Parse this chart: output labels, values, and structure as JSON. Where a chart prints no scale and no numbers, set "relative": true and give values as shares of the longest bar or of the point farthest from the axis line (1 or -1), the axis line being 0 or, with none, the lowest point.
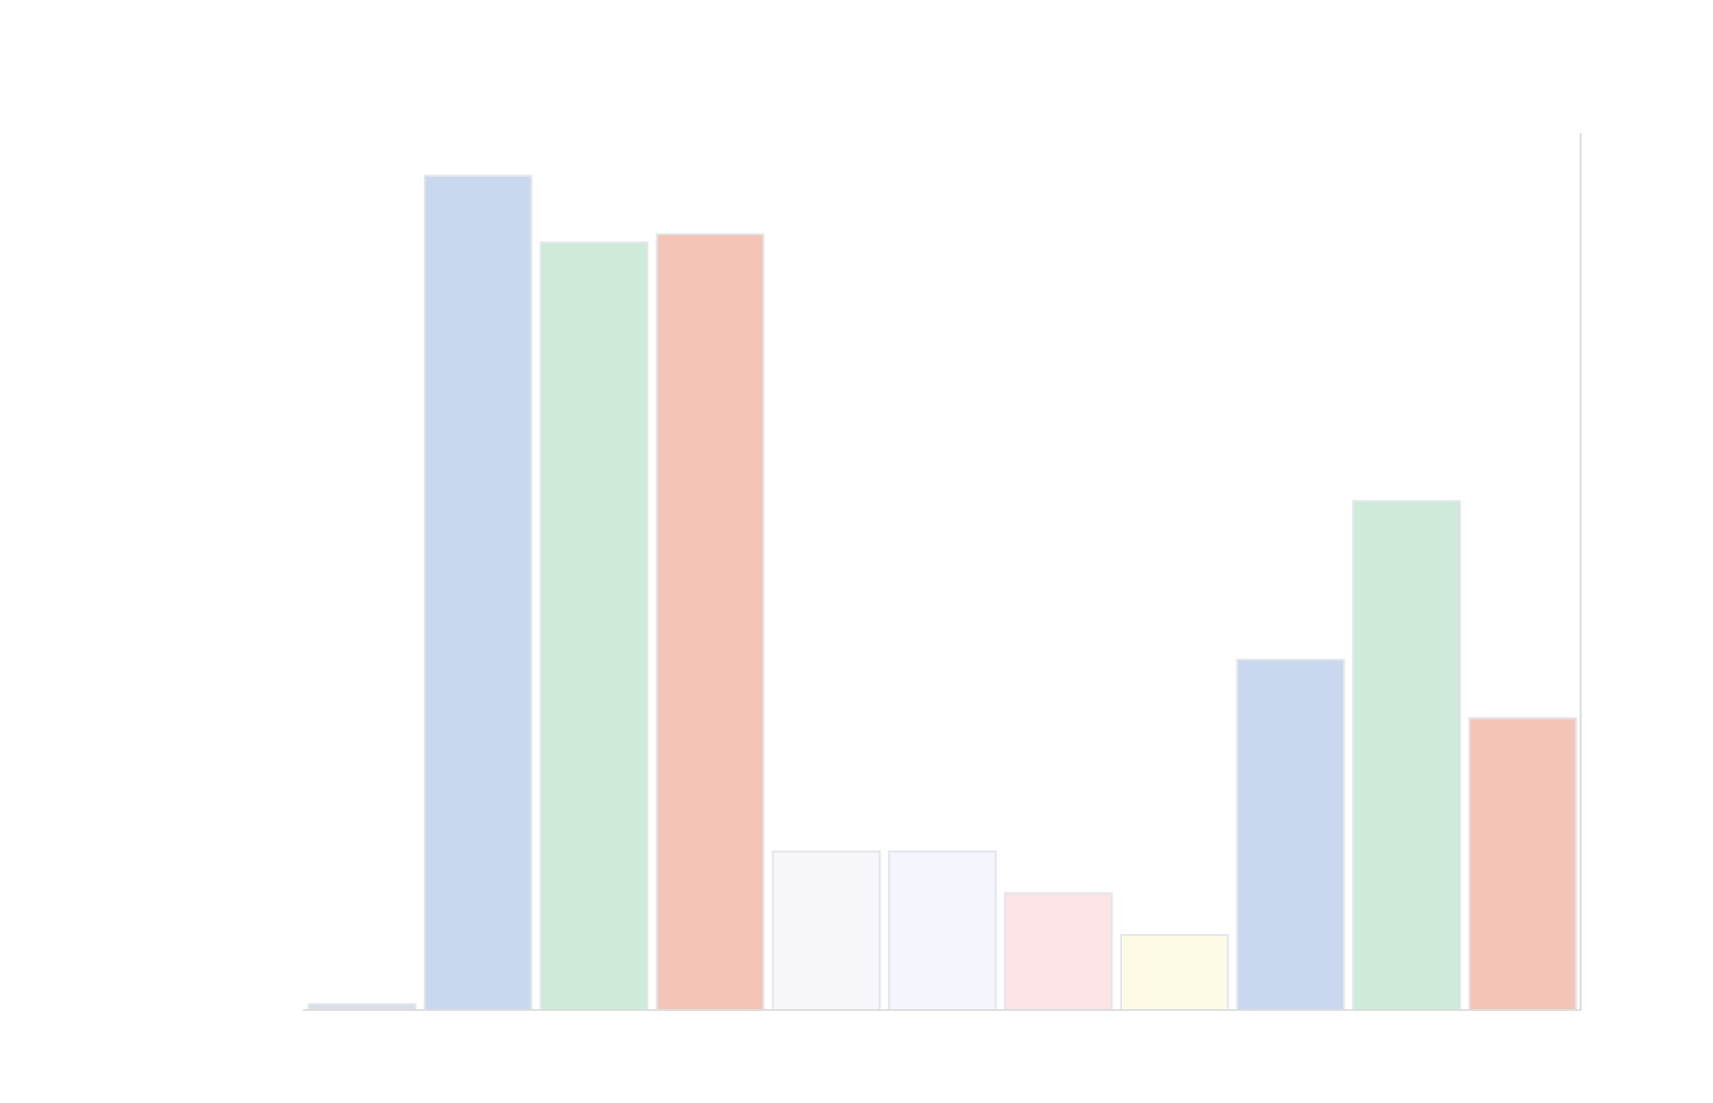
{
  "chart_data": {
    "type": "bar",
    "relative": true,
    "categories": [
      null,
      null,
      null,
      null,
      null,
      null,
      null,
      null,
      null,
      null,
      null
    ],
    "values": [
      0.007,
      1,
      0.92,
      0.93,
      0.19,
      0.19,
      0.14,
      0.09,
      0.42,
      0.61,
      0.35
    ],
    "colors": [
      "#d9dde6",
      "#c9d8ee",
      "#cdebd8",
      "#f4c4b6",
      "#f7f7fb",
      "#f3f6fc",
      "#fbe3e6",
      "#fdfbe6",
      "#c9d8ee",
      "#cdebd8",
      "#f4c4b6"
    ],
    "grid": false,
    "legend": false
  }
}
